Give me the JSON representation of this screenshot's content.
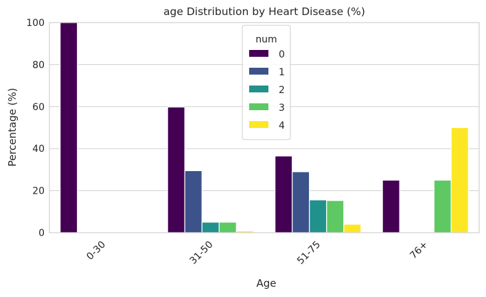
{
  "chart_data": {
    "type": "bar",
    "title": "age Distribution by Heart Disease (%)",
    "xlabel": "Age",
    "ylabel": "Percentage (%)",
    "categories": [
      "0-30",
      "31-50",
      "51-75",
      "76+"
    ],
    "ylim": [
      0,
      100
    ],
    "yticks": [
      "0",
      "20",
      "40",
      "60",
      "80",
      "100"
    ],
    "grid": true,
    "legend": {
      "title": "num",
      "placement": "top-center"
    },
    "series": [
      {
        "name": "0",
        "color": "#440154",
        "values": [
          100,
          59.8,
          36.5,
          25
        ]
      },
      {
        "name": "1",
        "color": "#3b528b",
        "values": [
          0,
          29.5,
          29,
          0
        ]
      },
      {
        "name": "2",
        "color": "#21918c",
        "values": [
          0,
          5,
          15.6,
          0
        ]
      },
      {
        "name": "3",
        "color": "#5ec962",
        "values": [
          0,
          5,
          15.3,
          25
        ]
      },
      {
        "name": "4",
        "color": "#fde725",
        "values": [
          0,
          0.8,
          4,
          50
        ]
      }
    ]
  }
}
